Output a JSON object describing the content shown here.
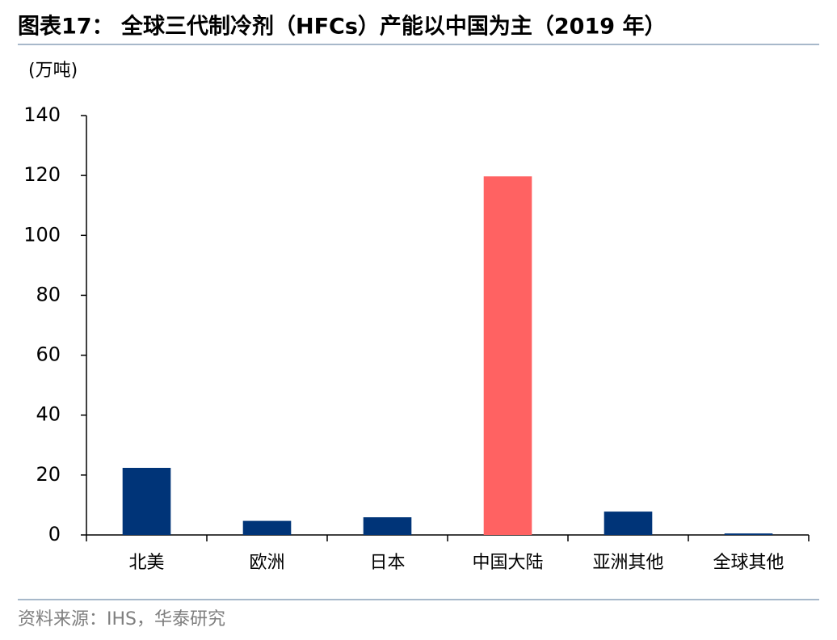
{
  "chart_data": {
    "type": "bar",
    "title": "图表17：  全球三代制冷剂（HFCs）产能以中国为主（2019 年）",
    "y_label": "(万吨)",
    "categories": [
      "北美",
      "欧洲",
      "日本",
      "中国大陆",
      "亚洲其他",
      "全球其他"
    ],
    "values": [
      22.4,
      4.7,
      5.9,
      119.7,
      7.8,
      0.5
    ],
    "colors": [
      "#003478",
      "#003478",
      "#003478",
      "#ff6262",
      "#003478",
      "#003478"
    ],
    "ylim": [
      0,
      140
    ],
    "yticks": [
      0,
      20,
      40,
      60,
      80,
      100,
      120,
      140
    ],
    "grid": false,
    "source": "资料来源：IHS，华泰研究"
  }
}
